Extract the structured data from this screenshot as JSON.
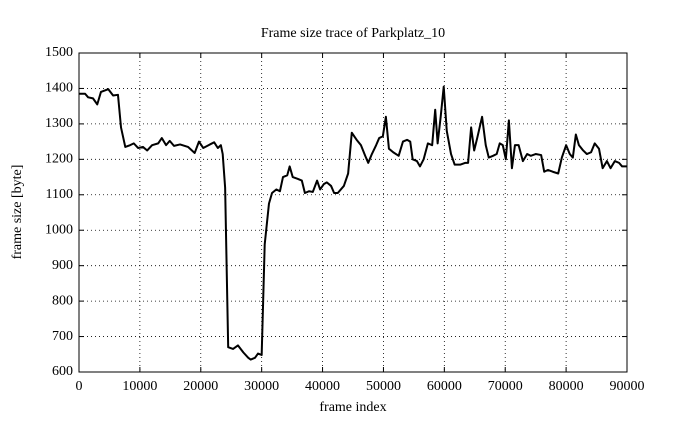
{
  "chart_data": {
    "type": "line",
    "title": "Frame size trace of Parkplatz_10",
    "x_label": "frame index",
    "y_label": "frame size [byte]",
    "color": "#000000",
    "grid": true,
    "xlim": [
      0,
      90000
    ],
    "ylim": [
      600,
      1500
    ],
    "xticks": [
      0,
      10000,
      20000,
      30000,
      40000,
      50000,
      60000,
      70000,
      80000,
      90000
    ],
    "yticks": [
      600,
      700,
      800,
      900,
      1000,
      1100,
      1200,
      1300,
      1400,
      1500
    ],
    "x": [
      0,
      1000,
      1500,
      2300,
      3000,
      3600,
      4800,
      5600,
      6400,
      6900,
      7600,
      8400,
      9000,
      9700,
      10500,
      11200,
      12000,
      13000,
      13600,
      14300,
      14900,
      15600,
      16600,
      17900,
      19000,
      19700,
      20400,
      21500,
      22200,
      22800,
      23300,
      23600,
      24000,
      24500,
      25300,
      26100,
      27000,
      27800,
      28200,
      28900,
      29400,
      30000,
      30500,
      31200,
      31700,
      32400,
      33000,
      33500,
      34200,
      34600,
      35100,
      35900,
      36600,
      37100,
      37800,
      38400,
      39100,
      39600,
      40200,
      40700,
      41400,
      41900,
      42500,
      43500,
      44200,
      44800,
      45600,
      46300,
      47000,
      47500,
      48100,
      48800,
      49300,
      49900,
      50400,
      50900,
      51600,
      52500,
      53200,
      53900,
      54400,
      54800,
      55500,
      56000,
      56600,
      57300,
      58000,
      58500,
      58900,
      59400,
      59900,
      60400,
      61100,
      61700,
      62600,
      63400,
      63900,
      64400,
      64900,
      65400,
      66200,
      66800,
      67300,
      68000,
      68600,
      69100,
      69600,
      70100,
      70600,
      71100,
      71600,
      72200,
      72900,
      73600,
      74200,
      75000,
      75900,
      76400,
      77000,
      77800,
      78700,
      79300,
      80000,
      80600,
      81100,
      81600,
      82100,
      82800,
      83400,
      84100,
      84700,
      85400,
      86000,
      86700,
      87300,
      88000,
      88700,
      89200,
      90000
    ],
    "values": [
      1385,
      1385,
      1375,
      1372,
      1355,
      1390,
      1398,
      1380,
      1382,
      1290,
      1235,
      1240,
      1245,
      1232,
      1235,
      1225,
      1240,
      1245,
      1260,
      1240,
      1252,
      1238,
      1242,
      1235,
      1218,
      1250,
      1232,
      1242,
      1248,
      1232,
      1240,
      1215,
      1120,
      670,
      665,
      675,
      655,
      640,
      635,
      640,
      652,
      648,
      960,
      1075,
      1105,
      1115,
      1110,
      1150,
      1155,
      1180,
      1150,
      1145,
      1140,
      1105,
      1110,
      1108,
      1140,
      1115,
      1130,
      1135,
      1125,
      1105,
      1105,
      1125,
      1160,
      1275,
      1255,
      1240,
      1210,
      1190,
      1215,
      1240,
      1260,
      1265,
      1320,
      1230,
      1220,
      1210,
      1250,
      1255,
      1250,
      1200,
      1195,
      1180,
      1200,
      1245,
      1240,
      1340,
      1245,
      1320,
      1405,
      1280,
      1215,
      1185,
      1185,
      1190,
      1190,
      1290,
      1225,
      1260,
      1320,
      1240,
      1205,
      1210,
      1215,
      1245,
      1240,
      1200,
      1310,
      1175,
      1240,
      1240,
      1195,
      1215,
      1210,
      1215,
      1212,
      1165,
      1170,
      1165,
      1160,
      1205,
      1240,
      1215,
      1205,
      1270,
      1240,
      1225,
      1215,
      1220,
      1245,
      1230,
      1175,
      1195,
      1175,
      1195,
      1190,
      1180,
      1180
    ]
  }
}
